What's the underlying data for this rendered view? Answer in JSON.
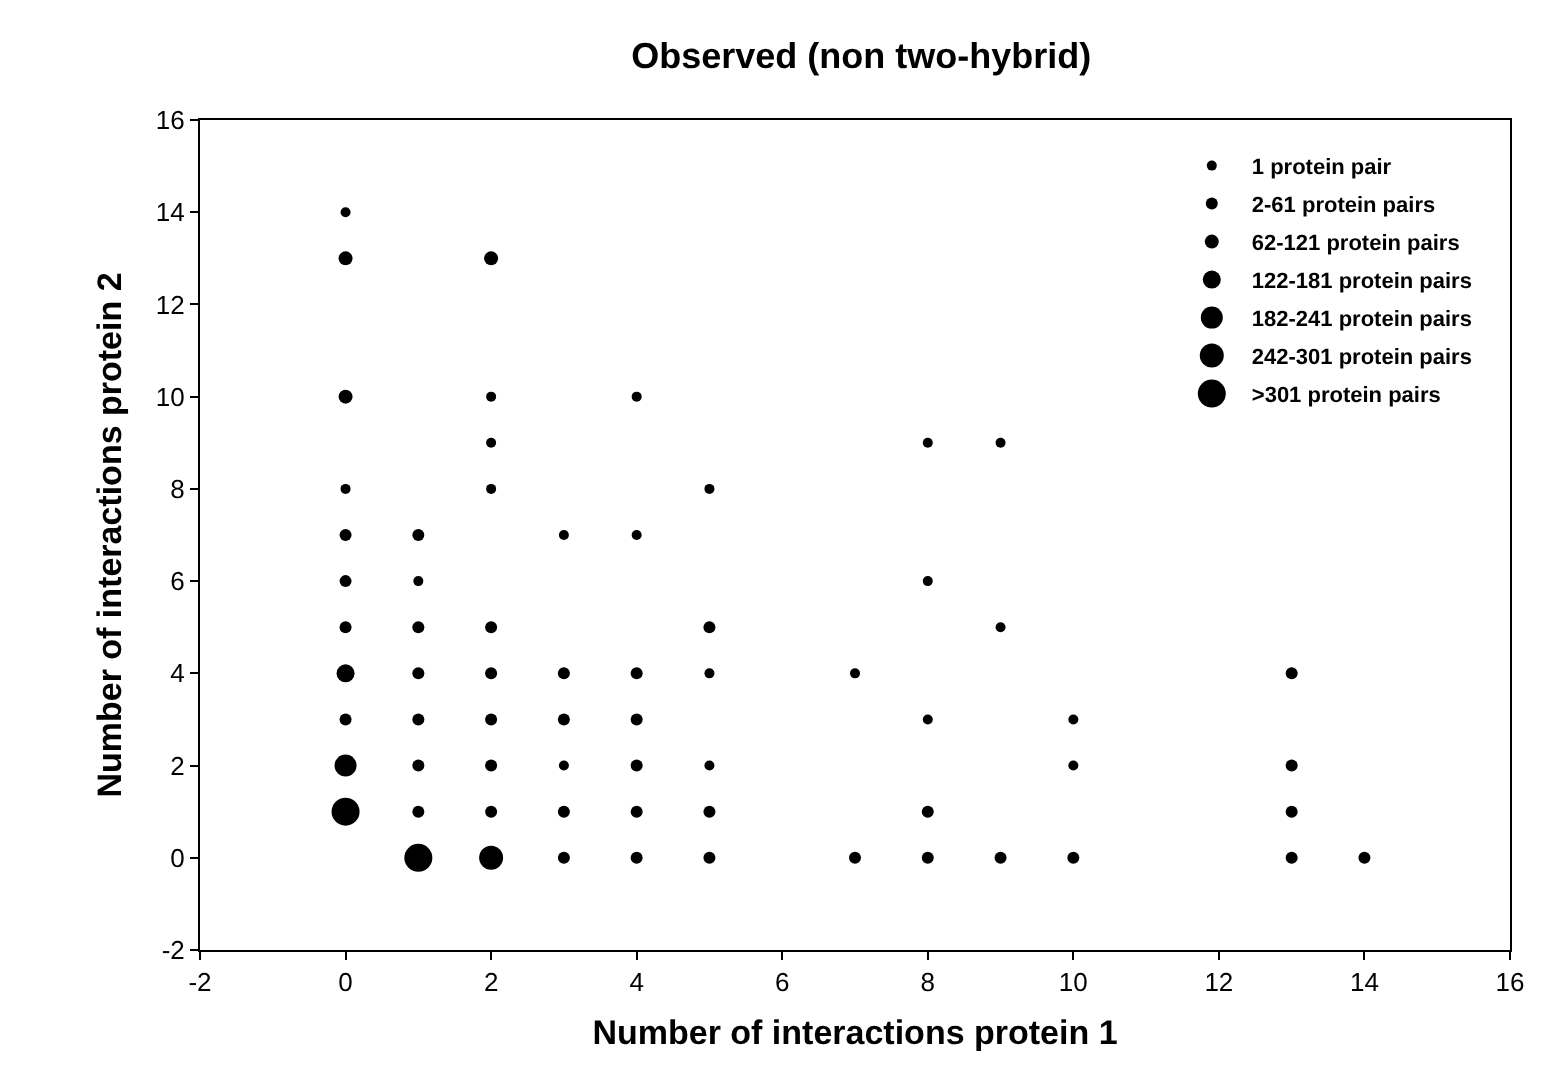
{
  "chart_data": {
    "type": "scatter",
    "title": "Observed (non two-hybrid)",
    "xlabel": "Number of interactions protein 1",
    "ylabel": "Number of interactions protein 2",
    "xlim": [
      -2,
      16
    ],
    "xticks": [
      -2,
      0,
      2,
      4,
      6,
      8,
      10,
      12,
      14,
      16
    ],
    "ylim": [
      -2,
      16
    ],
    "yticks": [
      -2,
      0,
      2,
      4,
      6,
      8,
      10,
      12,
      14,
      16
    ],
    "grid": false,
    "legend": "top right",
    "marker": "circle",
    "series": [
      {
        "name": "1 protein pair",
        "color": "#000000",
        "x": [
          0,
          0,
          1,
          2,
          2,
          2,
          3,
          3,
          4,
          4,
          5,
          5,
          5,
          7,
          8,
          8,
          8,
          9,
          9,
          10,
          10
        ],
        "values": [
          14,
          8,
          6,
          10,
          9,
          8,
          7,
          2,
          10,
          7,
          8,
          4,
          2,
          4,
          9,
          6,
          3,
          9,
          5,
          3,
          2
        ]
      },
      {
        "name": "2-61 protein pairs",
        "color": "#000000",
        "x": [
          0,
          0,
          0,
          0,
          1,
          1,
          1,
          1,
          1,
          1,
          2,
          2,
          2,
          2,
          2,
          3,
          3,
          3,
          3,
          4,
          4,
          4,
          4,
          4,
          5,
          5,
          5,
          7,
          8,
          8,
          9,
          10,
          13,
          13,
          13,
          13,
          14
        ],
        "values": [
          7,
          6,
          5,
          3,
          7,
          5,
          4,
          3,
          2,
          1,
          5,
          4,
          3,
          2,
          1,
          4,
          3,
          1,
          0,
          4,
          3,
          2,
          1,
          0,
          5,
          1,
          0,
          0,
          1,
          0,
          0,
          0,
          4,
          2,
          1,
          0,
          0
        ]
      },
      {
        "name": "62-121 protein pairs",
        "color": "#000000",
        "x": [
          0,
          0,
          2
        ],
        "values": [
          13,
          10,
          13
        ]
      },
      {
        "name": "122-181 protein pairs",
        "color": "#000000",
        "x": [
          0
        ],
        "values": [
          4
        ]
      },
      {
        "name": "182-241 protein pairs",
        "color": "#000000",
        "x": [
          0
        ],
        "values": [
          2
        ]
      },
      {
        "name": "242-301 protein pairs",
        "color": "#000000",
        "x": [
          2
        ],
        "values": [
          0
        ]
      },
      {
        "name": ">301 protein pairs",
        "color": "#000000",
        "x": [
          0,
          1
        ],
        "values": [
          1,
          0
        ]
      }
    ]
  }
}
